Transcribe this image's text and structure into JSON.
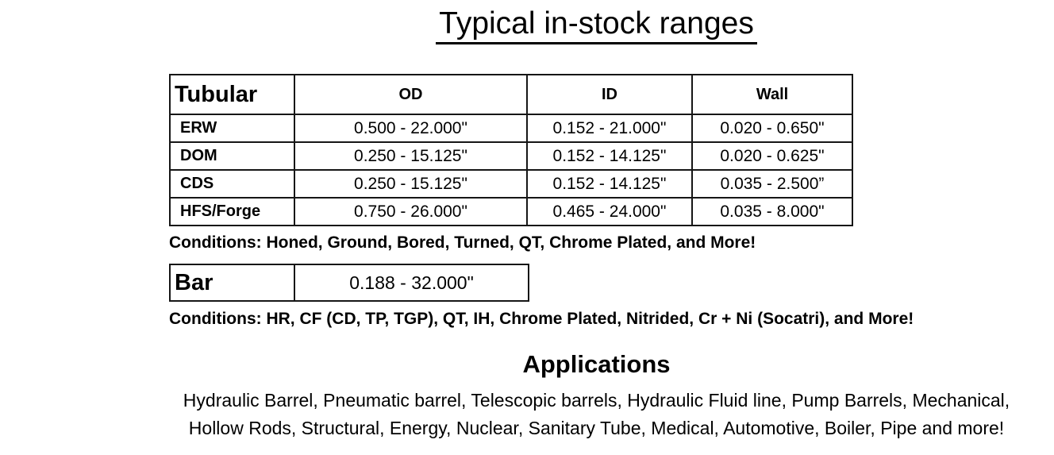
{
  "title": "Typical in-stock ranges",
  "tubular_table": {
    "corner_label": "Tubular",
    "columns": [
      "OD",
      "ID",
      "Wall"
    ],
    "rows": [
      {
        "label": "ERW",
        "od": "0.500 - 22.000\"",
        "id": "0.152 - 21.000\"",
        "wall": "0.020 - 0.650\""
      },
      {
        "label": "DOM",
        "od": "0.250 - 15.125\"",
        "id": "0.152 - 14.125\"",
        "wall": "0.020 - 0.625\""
      },
      {
        "label": "CDS",
        "od": "0.250 - 15.125\"",
        "id": "0.152 - 14.125\"",
        "wall": "0.035 - 2.500”"
      },
      {
        "label": "HFS/Forge",
        "od": "0.750 - 26.000\"",
        "id": "0.465 - 24.000\"",
        "wall": "0.035 - 8.000\""
      }
    ],
    "conditions": "Conditions: Honed, Ground, Bored, Turned, QT, Chrome Plated, and More!"
  },
  "bar_table": {
    "label": "Bar",
    "range": "0.188 - 32.000\"",
    "conditions": "Conditions: HR, CF (CD, TP, TGP), QT, IH, Chrome Plated, Nitrided, Cr + Ni (Socatri), and More!"
  },
  "applications": {
    "heading": "Applications",
    "line1": "Hydraulic Barrel, Pneumatic barrel, Telescopic barrels, Hydraulic Fluid line, Pump Barrels, Mechanical,",
    "line2": "Hollow Rods, Structural, Energy, Nuclear, Sanitary Tube, Medical, Automotive, Boiler, Pipe and more!"
  }
}
